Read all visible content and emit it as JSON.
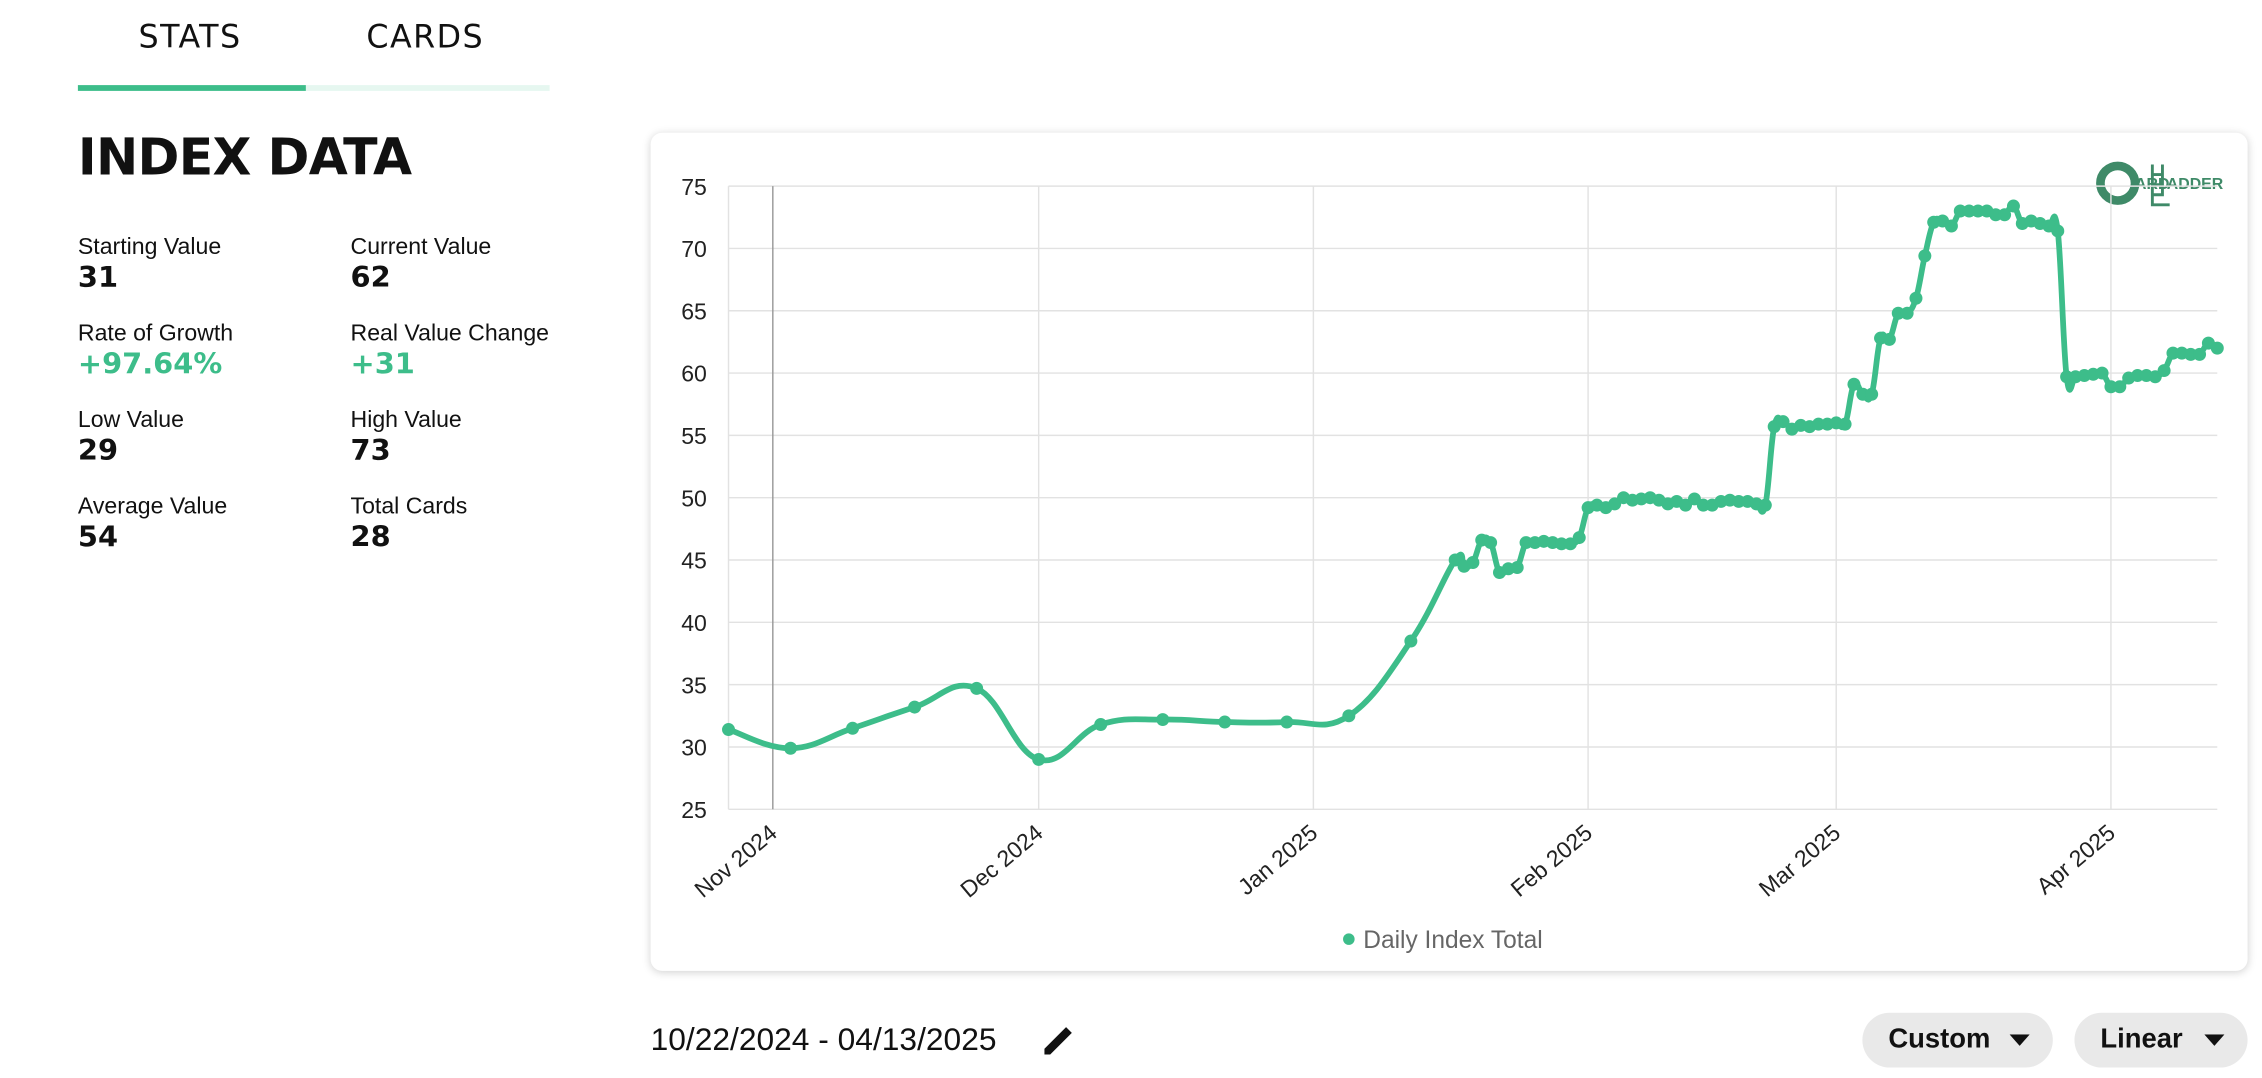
{
  "tabs": [
    "STATS",
    "CARDS"
  ],
  "active_tab": 0,
  "heading": "INDEX DATA",
  "stats": [
    {
      "label": "Starting Value",
      "value": "31"
    },
    {
      "label": "Current Value",
      "value": "62"
    },
    {
      "label": "Rate of Growth",
      "value": "+97.64%"
    },
    {
      "label": "Real Value Change",
      "value": "+31"
    },
    {
      "label": "Low Value",
      "value": "29"
    },
    {
      "label": "High Value",
      "value": "73"
    },
    {
      "label": "Average Value",
      "value": "54"
    },
    {
      "label": "Total Cards",
      "value": "28"
    }
  ],
  "logo": [
    "ARD",
    "ADDER"
  ],
  "chart_data": {
    "type": "line",
    "x": [
      "2024-10-27",
      "2024-11-03",
      "2024-11-10",
      "2024-11-17",
      "2024-11-24",
      "2024-12-01",
      "2024-12-08",
      "2024-12-15",
      "2024-12-22",
      "2024-12-29",
      "2025-01-05",
      "2025-01-12",
      "2025-01-17",
      "2025-01-18",
      "2025-01-19",
      "2025-01-20",
      "2025-01-21",
      "2025-01-22",
      "2025-01-23",
      "2025-01-24",
      "2025-01-25",
      "2025-01-26",
      "2025-01-27",
      "2025-01-28",
      "2025-01-29",
      "2025-01-30",
      "2025-01-31",
      "2025-02-01",
      "2025-02-02",
      "2025-02-03",
      "2025-02-04",
      "2025-02-05",
      "2025-02-06",
      "2025-02-07",
      "2025-02-08",
      "2025-02-09",
      "2025-02-10",
      "2025-02-11",
      "2025-02-12",
      "2025-02-13",
      "2025-02-14",
      "2025-02-15",
      "2025-02-16",
      "2025-02-17",
      "2025-02-18",
      "2025-02-19",
      "2025-02-20",
      "2025-02-21",
      "2025-02-22",
      "2025-02-23",
      "2025-02-24",
      "2025-02-25",
      "2025-02-26",
      "2025-02-27",
      "2025-02-28",
      "2025-03-01",
      "2025-03-02",
      "2025-03-03",
      "2025-03-04",
      "2025-03-05",
      "2025-03-06",
      "2025-03-07",
      "2025-03-08",
      "2025-03-09",
      "2025-03-10",
      "2025-03-11",
      "2025-03-12",
      "2025-03-13",
      "2025-03-14",
      "2025-03-15",
      "2025-03-16",
      "2025-03-17",
      "2025-03-18",
      "2025-03-19",
      "2025-03-20",
      "2025-03-21",
      "2025-03-22",
      "2025-03-23",
      "2025-03-24",
      "2025-03-25",
      "2025-03-26",
      "2025-03-27",
      "2025-03-28",
      "2025-03-29",
      "2025-03-30",
      "2025-03-31",
      "2025-04-01",
      "2025-04-02",
      "2025-04-03",
      "2025-04-04",
      "2025-04-05",
      "2025-04-06",
      "2025-04-07",
      "2025-04-08",
      "2025-04-09",
      "2025-04-10",
      "2025-04-11",
      "2025-04-12",
      "2025-04-13"
    ],
    "series": [
      {
        "name": "Daily Index Total",
        "color": "#3dbd8a",
        "values": [
          31.4,
          29.9,
          31.5,
          33.2,
          34.7,
          29.0,
          31.8,
          32.2,
          32.0,
          32.0,
          32.5,
          38.5,
          45.0,
          44.5,
          44.8,
          46.6,
          46.4,
          44.0,
          44.3,
          44.4,
          46.4,
          46.4,
          46.5,
          46.4,
          46.3,
          46.3,
          46.8,
          49.2,
          49.4,
          49.2,
          49.5,
          50.0,
          49.8,
          49.9,
          50.0,
          49.8,
          49.5,
          49.7,
          49.4,
          49.9,
          49.4,
          49.4,
          49.7,
          49.8,
          49.7,
          49.7,
          49.5,
          49.4,
          55.7,
          56.1,
          55.5,
          55.8,
          55.7,
          55.9,
          55.9,
          56.0,
          55.9,
          59.1,
          58.3,
          58.3,
          62.8,
          62.7,
          64.8,
          64.8,
          66.0,
          69.4,
          72.1,
          72.2,
          71.8,
          73.0,
          73.0,
          73.0,
          73.0,
          72.7,
          72.7,
          73.4,
          72.0,
          72.2,
          72.0,
          71.8,
          71.4,
          59.7,
          59.7,
          59.8,
          59.9,
          60.0,
          58.9,
          58.9,
          59.6,
          59.8,
          59.8,
          59.7,
          60.2,
          61.6,
          61.6,
          61.5,
          61.5,
          62.4,
          62.0
        ]
      }
    ],
    "xlim": [
      "2024-10-27",
      "2025-04-13"
    ],
    "xticks": [
      {
        "value": "2024-11-01",
        "label": "Nov 2024"
      },
      {
        "value": "2024-12-01",
        "label": "Dec 2024"
      },
      {
        "value": "2025-01-01",
        "label": "Jan 2025"
      },
      {
        "value": "2025-02-01",
        "label": "Feb 2025"
      },
      {
        "value": "2025-03-01",
        "label": "Mar 2025"
      },
      {
        "value": "2025-04-01",
        "label": "Apr 2025"
      }
    ],
    "ylim": [
      25,
      75
    ],
    "yticks": [
      25,
      30,
      35,
      40,
      45,
      50,
      55,
      60,
      65,
      70,
      75
    ],
    "grid": true,
    "legend": "bottom"
  },
  "date_range": "10/22/2024 - 04/13/2025",
  "buttons": [
    "Custom",
    "Linear"
  ]
}
